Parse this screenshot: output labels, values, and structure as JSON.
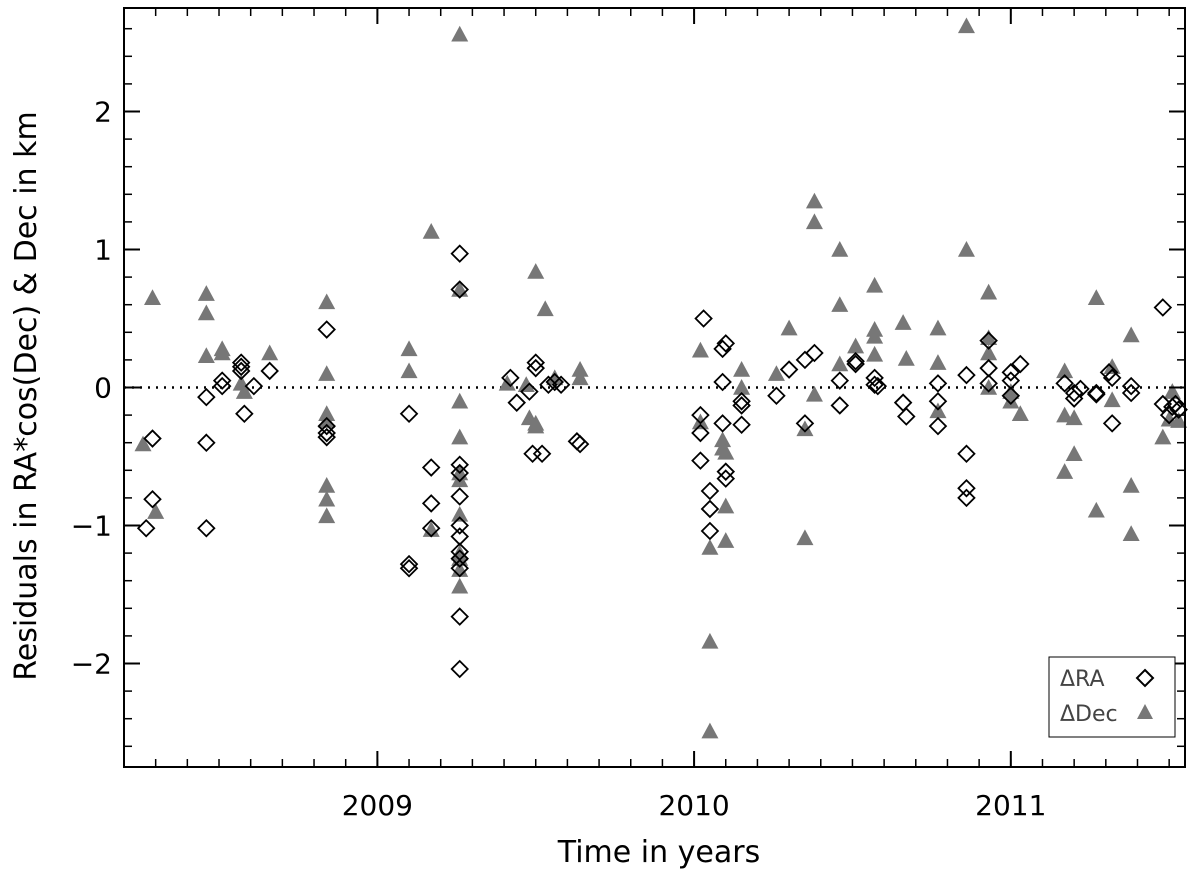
{
  "chart_data": {
    "type": "scatter",
    "xlabel": "Time in years",
    "ylabel": "Residuals in RA*cos(Dec) & Dec in km",
    "xlim": [
      2008.2,
      2011.55
    ],
    "ylim": [
      -2.75,
      2.75
    ],
    "x_ticks": [
      2009,
      2010,
      2011
    ],
    "x_tick_labels": [
      "2009",
      "2010",
      "2011"
    ],
    "y_ticks": [
      -2,
      -1,
      0,
      1,
      2
    ],
    "y_tick_labels": [
      "−2",
      "−1",
      "0",
      "1",
      "2"
    ],
    "reference_line": {
      "y": 0,
      "style": "dotted"
    },
    "grid": false,
    "legend_position": "bottom-right",
    "colors": {
      "ra": "#000000",
      "dec": "#777777"
    },
    "series": [
      {
        "name": "ΔRA",
        "marker": "open-diamond",
        "points": [
          [
            2008.27,
            -1.02
          ],
          [
            2008.29,
            -0.81
          ],
          [
            2008.29,
            -0.37
          ],
          [
            2008.46,
            -1.02
          ],
          [
            2008.46,
            -0.4
          ],
          [
            2008.46,
            -0.07
          ],
          [
            2008.51,
            0.05
          ],
          [
            2008.51,
            0.01
          ],
          [
            2008.57,
            0.18
          ],
          [
            2008.57,
            0.15
          ],
          [
            2008.57,
            0.12
          ],
          [
            2008.58,
            -0.19
          ],
          [
            2008.61,
            0.01
          ],
          [
            2008.66,
            0.12
          ],
          [
            2008.84,
            0.42
          ],
          [
            2008.84,
            -0.28
          ],
          [
            2008.84,
            -0.33
          ],
          [
            2008.84,
            -0.36
          ],
          [
            2009.1,
            -0.19
          ],
          [
            2009.1,
            -1.28
          ],
          [
            2009.1,
            -1.31
          ],
          [
            2009.17,
            -0.58
          ],
          [
            2009.17,
            -0.84
          ],
          [
            2009.17,
            -1.02
          ],
          [
            2009.26,
            0.97
          ],
          [
            2009.26,
            0.71
          ],
          [
            2009.26,
            -0.56
          ],
          [
            2009.26,
            -0.62
          ],
          [
            2009.26,
            -0.79
          ],
          [
            2009.26,
            -1.0
          ],
          [
            2009.26,
            -1.08
          ],
          [
            2009.26,
            -1.19
          ],
          [
            2009.26,
            -1.24
          ],
          [
            2009.26,
            -1.31
          ],
          [
            2009.26,
            -1.66
          ],
          [
            2009.26,
            -2.04
          ],
          [
            2009.42,
            0.07
          ],
          [
            2009.44,
            -0.11
          ],
          [
            2009.48,
            -0.03
          ],
          [
            2009.5,
            0.18
          ],
          [
            2009.5,
            0.14
          ],
          [
            2009.49,
            -0.48
          ],
          [
            2009.52,
            -0.48
          ],
          [
            2009.54,
            0.02
          ],
          [
            2009.56,
            0.04
          ],
          [
            2009.58,
            0.02
          ],
          [
            2009.63,
            -0.39
          ],
          [
            2009.64,
            -0.41
          ],
          [
            2010.03,
            0.5
          ],
          [
            2010.02,
            -0.2
          ],
          [
            2010.02,
            -0.33
          ],
          [
            2010.02,
            -0.53
          ],
          [
            2010.05,
            -0.75
          ],
          [
            2010.05,
            -0.88
          ],
          [
            2010.05,
            -1.04
          ],
          [
            2010.1,
            0.32
          ],
          [
            2010.09,
            0.28
          ],
          [
            2010.09,
            0.04
          ],
          [
            2010.09,
            -0.26
          ],
          [
            2010.1,
            -0.61
          ],
          [
            2010.1,
            -0.66
          ],
          [
            2010.15,
            -0.1
          ],
          [
            2010.15,
            -0.13
          ],
          [
            2010.15,
            -0.27
          ],
          [
            2010.26,
            -0.06
          ],
          [
            2010.3,
            0.13
          ],
          [
            2010.35,
            0.2
          ],
          [
            2010.35,
            -0.26
          ],
          [
            2010.38,
            0.25
          ],
          [
            2010.46,
            0.05
          ],
          [
            2010.46,
            -0.13
          ],
          [
            2010.51,
            0.19
          ],
          [
            2010.51,
            0.17
          ],
          [
            2010.57,
            0.07
          ],
          [
            2010.57,
            0.02
          ],
          [
            2010.58,
            0.01
          ],
          [
            2010.66,
            -0.11
          ],
          [
            2010.67,
            -0.21
          ],
          [
            2010.77,
            0.03
          ],
          [
            2010.77,
            -0.1
          ],
          [
            2010.77,
            -0.28
          ],
          [
            2010.86,
            0.09
          ],
          [
            2010.86,
            -0.48
          ],
          [
            2010.86,
            -0.73
          ],
          [
            2010.86,
            -0.8
          ],
          [
            2010.93,
            0.34
          ],
          [
            2010.93,
            0.14
          ],
          [
            2010.93,
            0.03
          ],
          [
            2011.0,
            0.11
          ],
          [
            2011.0,
            0.05
          ],
          [
            2011.0,
            -0.06
          ],
          [
            2011.03,
            0.17
          ],
          [
            2011.17,
            0.03
          ],
          [
            2011.2,
            -0.04
          ],
          [
            2011.2,
            -0.08
          ],
          [
            2011.22,
            -0.01
          ],
          [
            2011.27,
            -0.04
          ],
          [
            2011.27,
            -0.05
          ],
          [
            2011.31,
            0.11
          ],
          [
            2011.32,
            0.07
          ],
          [
            2011.32,
            -0.26
          ],
          [
            2011.38,
            0.01
          ],
          [
            2011.38,
            -0.04
          ],
          [
            2011.48,
            0.58
          ],
          [
            2011.48,
            -0.12
          ],
          [
            2011.5,
            -0.2
          ],
          [
            2011.51,
            -0.14
          ],
          [
            2011.52,
            -0.12
          ],
          [
            2011.53,
            -0.16
          ]
        ]
      },
      {
        "name": "ΔDec",
        "marker": "filled-triangle",
        "points": [
          [
            2008.26,
            -0.41
          ],
          [
            2008.29,
            0.65
          ],
          [
            2008.3,
            -0.9
          ],
          [
            2008.46,
            0.68
          ],
          [
            2008.46,
            0.54
          ],
          [
            2008.46,
            0.23
          ],
          [
            2008.51,
            0.28
          ],
          [
            2008.51,
            0.25
          ],
          [
            2008.57,
            0.03
          ],
          [
            2008.58,
            -0.03
          ],
          [
            2008.66,
            0.25
          ],
          [
            2008.84,
            0.62
          ],
          [
            2008.84,
            0.1
          ],
          [
            2008.84,
            -0.19
          ],
          [
            2008.84,
            -0.24
          ],
          [
            2008.84,
            -0.71
          ],
          [
            2008.84,
            -0.81
          ],
          [
            2008.84,
            -0.93
          ],
          [
            2009.1,
            0.28
          ],
          [
            2009.1,
            0.12
          ],
          [
            2009.17,
            1.13
          ],
          [
            2009.17,
            -1.03
          ],
          [
            2009.26,
            2.56
          ],
          [
            2009.26,
            0.71
          ],
          [
            2009.26,
            -0.1
          ],
          [
            2009.26,
            -0.36
          ],
          [
            2009.26,
            -0.62
          ],
          [
            2009.26,
            -0.67
          ],
          [
            2009.26,
            -0.92
          ],
          [
            2009.26,
            -1.2
          ],
          [
            2009.26,
            -1.24
          ],
          [
            2009.26,
            -1.32
          ],
          [
            2009.26,
            -1.44
          ],
          [
            2009.41,
            0.03
          ],
          [
            2009.47,
            0.02
          ],
          [
            2009.48,
            -0.22
          ],
          [
            2009.5,
            0.84
          ],
          [
            2009.5,
            -0.26
          ],
          [
            2009.5,
            -0.28
          ],
          [
            2009.53,
            0.57
          ],
          [
            2009.56,
            0.07
          ],
          [
            2009.64,
            0.13
          ],
          [
            2009.64,
            0.07
          ],
          [
            2010.02,
            0.27
          ],
          [
            2010.02,
            -0.25
          ],
          [
            2010.05,
            -1.16
          ],
          [
            2010.05,
            -1.84
          ],
          [
            2010.05,
            -2.49
          ],
          [
            2010.09,
            -0.38
          ],
          [
            2010.09,
            -0.44
          ],
          [
            2010.1,
            -0.47
          ],
          [
            2010.1,
            -0.86
          ],
          [
            2010.1,
            -1.11
          ],
          [
            2010.15,
            0.13
          ],
          [
            2010.15,
            0.0
          ],
          [
            2010.3,
            0.43
          ],
          [
            2010.26,
            0.1
          ],
          [
            2010.35,
            -1.09
          ],
          [
            2010.35,
            -0.3
          ],
          [
            2010.38,
            1.35
          ],
          [
            2010.38,
            1.2
          ],
          [
            2010.38,
            -0.05
          ],
          [
            2010.46,
            1.0
          ],
          [
            2010.46,
            0.6
          ],
          [
            2010.46,
            0.17
          ],
          [
            2010.51,
            0.3
          ],
          [
            2010.57,
            0.74
          ],
          [
            2010.57,
            0.42
          ],
          [
            2010.57,
            0.37
          ],
          [
            2010.57,
            0.24
          ],
          [
            2010.66,
            0.47
          ],
          [
            2010.67,
            0.21
          ],
          [
            2010.77,
            0.43
          ],
          [
            2010.77,
            0.18
          ],
          [
            2010.77,
            -0.17
          ],
          [
            2010.86,
            2.62
          ],
          [
            2010.86,
            1.0
          ],
          [
            2010.93,
            0.69
          ],
          [
            2010.93,
            0.36
          ],
          [
            2010.93,
            0.25
          ],
          [
            2010.93,
            0.0
          ],
          [
            2011.0,
            -0.03
          ],
          [
            2011.0,
            -0.1
          ],
          [
            2011.03,
            -0.19
          ],
          [
            2011.17,
            0.12
          ],
          [
            2011.17,
            -0.2
          ],
          [
            2011.17,
            -0.61
          ],
          [
            2011.2,
            -0.22
          ],
          [
            2011.2,
            -0.48
          ],
          [
            2011.27,
            0.65
          ],
          [
            2011.27,
            -0.89
          ],
          [
            2011.32,
            0.15
          ],
          [
            2011.32,
            -0.09
          ],
          [
            2011.38,
            0.38
          ],
          [
            2011.38,
            -0.71
          ],
          [
            2011.38,
            -1.06
          ],
          [
            2011.48,
            -0.36
          ],
          [
            2011.5,
            -0.23
          ],
          [
            2011.51,
            -0.03
          ],
          [
            2011.53,
            -0.24
          ]
        ]
      }
    ]
  }
}
